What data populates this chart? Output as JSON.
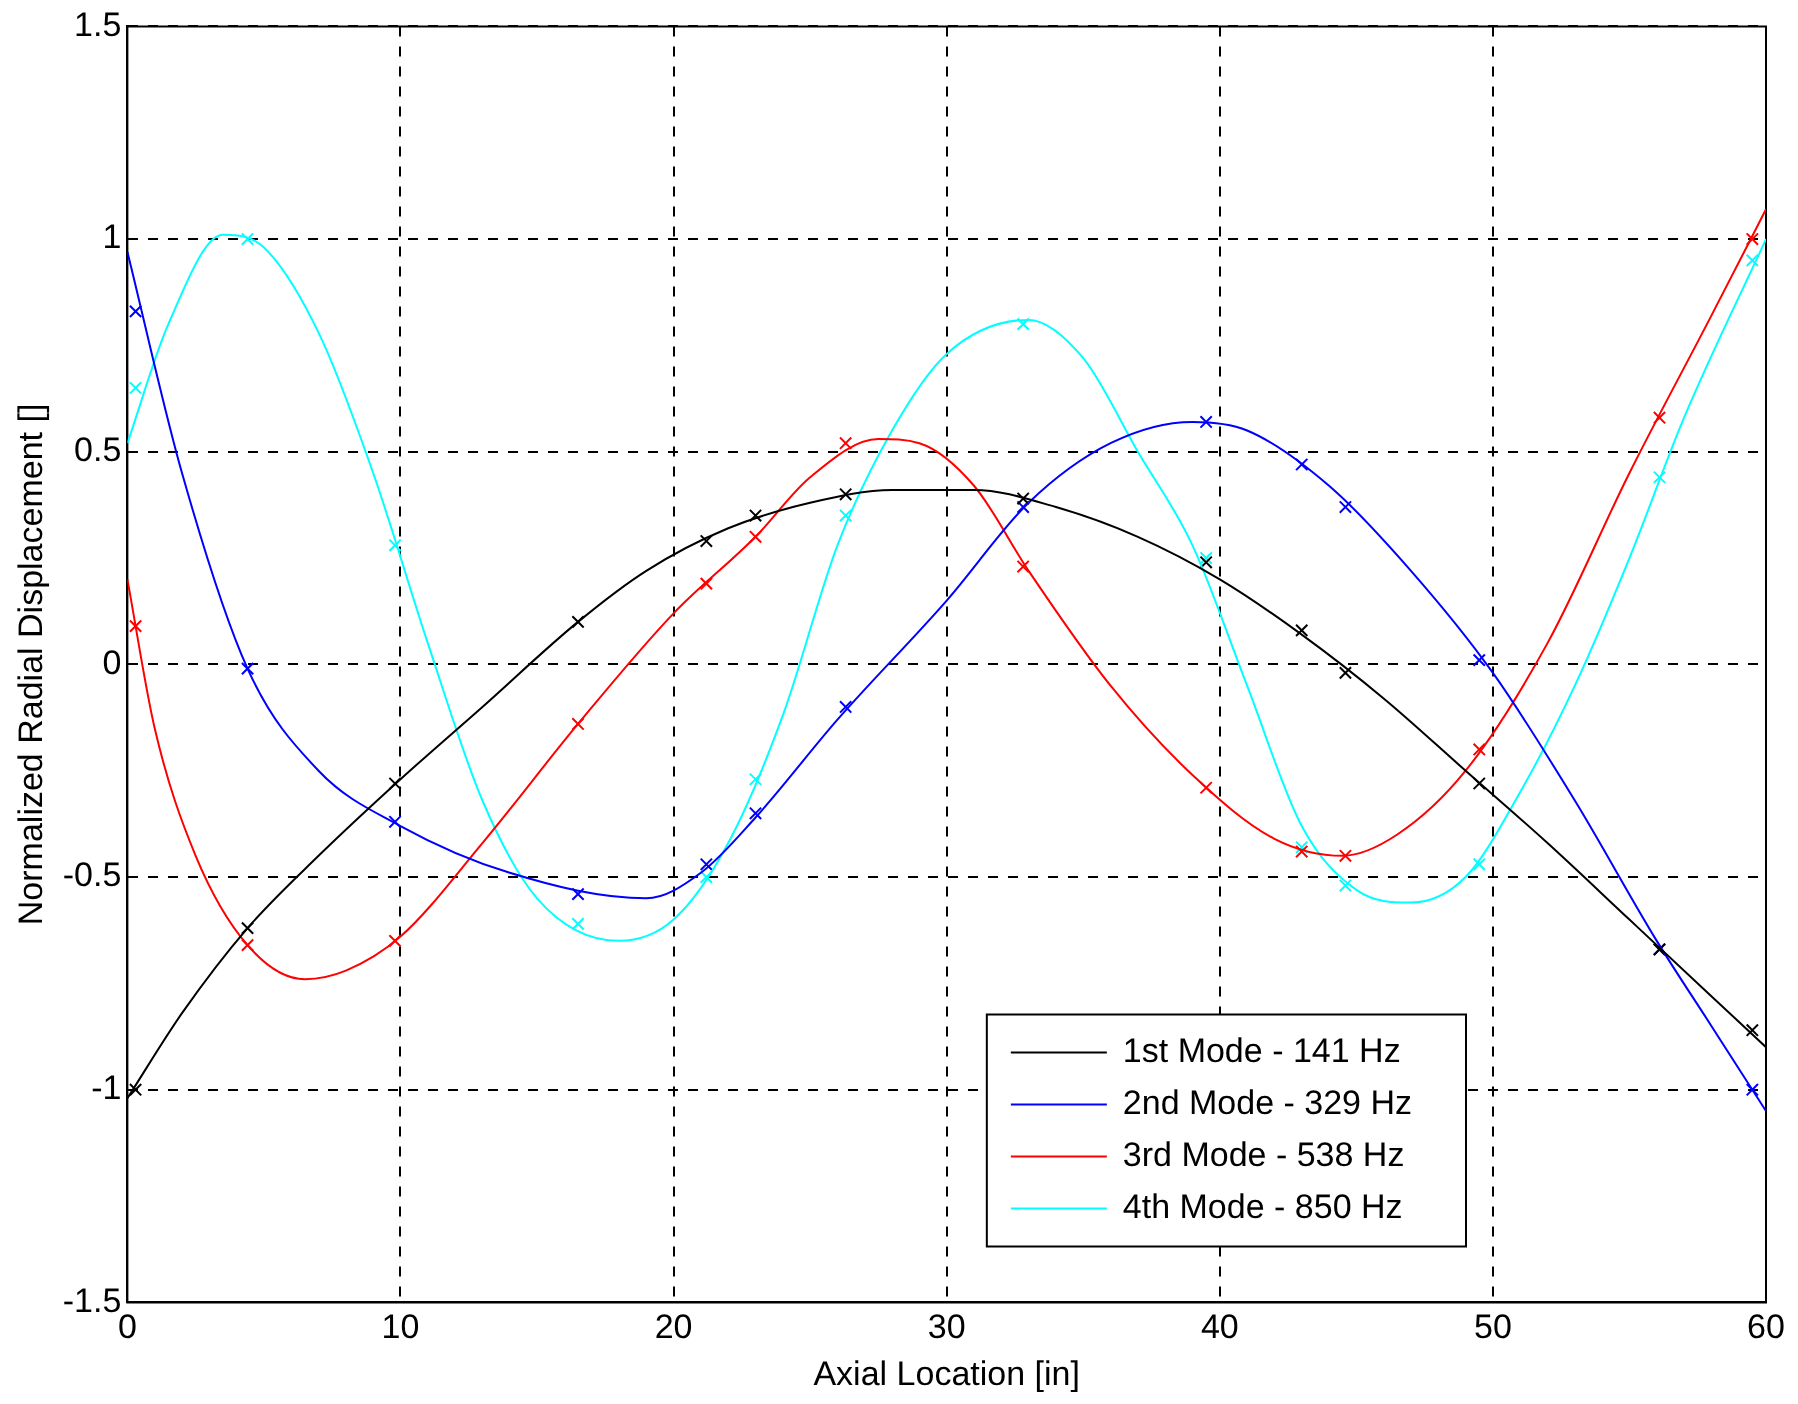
{
  "chart_data": {
    "type": "line",
    "xlabel": "Axial Location [in]",
    "ylabel": "Normalized Radial Displacement []",
    "xlim": [
      0,
      60
    ],
    "xticks": [
      0,
      10,
      20,
      30,
      40,
      50,
      60
    ],
    "ylim": [
      -1.5,
      1.5
    ],
    "yticks": [
      -1.5,
      -1,
      -0.5,
      0,
      0.5,
      1,
      1.5
    ],
    "grid": true,
    "legend": "bottom right",
    "line_style": "solid",
    "series": [
      {
        "name": "1st Mode - 141 Hz",
        "color": "#000000",
        "marker": "none",
        "x": [
          0,
          2,
          4.4,
          7,
          10,
          13,
          16.5,
          19,
          22,
          25,
          28,
          31,
          34,
          37,
          40,
          43,
          46,
          49,
          52,
          55,
          58,
          60
        ],
        "values": [
          -1.02,
          -0.82,
          -0.62,
          -0.45,
          -0.27,
          -0.1,
          0.1,
          0.22,
          0.32,
          0.38,
          0.41,
          0.41,
          0.37,
          0.3,
          0.2,
          0.07,
          -0.08,
          -0.25,
          -0.42,
          -0.6,
          -0.78,
          -0.9
        ]
      },
      {
        "name": "2nd Mode - 329 Hz",
        "color": "#0000ff",
        "marker": "none",
        "x": [
          0,
          2,
          4.4,
          7,
          10,
          14,
          19,
          21,
          23,
          26,
          30,
          33,
          36,
          39,
          41,
          44,
          47,
          50,
          53,
          56,
          58,
          60
        ],
        "values": [
          0.97,
          0.45,
          -0.01,
          -0.25,
          -0.38,
          -0.49,
          -0.55,
          -0.49,
          -0.36,
          -0.13,
          0.15,
          0.38,
          0.52,
          0.57,
          0.55,
          0.42,
          0.22,
          -0.02,
          -0.32,
          -0.65,
          -0.85,
          -1.05
        ]
      },
      {
        "name": "3rd Mode - 538 Hz",
        "color": "#ff0000",
        "marker": "none",
        "x": [
          0,
          1,
          2.5,
          4.4,
          6.5,
          8,
          10,
          13,
          16.5,
          20,
          23,
          25,
          27.5,
          29,
          31,
          33,
          36,
          39,
          42,
          44.5,
          46.5,
          49,
          52,
          55,
          58,
          60
        ],
        "values": [
          0.2,
          -0.15,
          -0.45,
          -0.66,
          -0.74,
          -0.72,
          -0.64,
          -0.42,
          -0.14,
          0.12,
          0.3,
          0.44,
          0.53,
          0.52,
          0.42,
          0.22,
          -0.05,
          -0.26,
          -0.41,
          -0.45,
          -0.4,
          -0.25,
          0.05,
          0.45,
          0.82,
          1.07
        ]
      },
      {
        "name": "4th Mode - 850 Hz",
        "color": "#00ffff",
        "marker": "none",
        "x": [
          0,
          1.5,
          3.5,
          5,
          7,
          9,
          11,
          13,
          15,
          18,
          20,
          22,
          24,
          26,
          28,
          30,
          33,
          35,
          37,
          39,
          41,
          43,
          45,
          47,
          49,
          51,
          53,
          55,
          57,
          60
        ],
        "values": [
          0.52,
          0.8,
          1.01,
          0.98,
          0.78,
          0.45,
          0.05,
          -0.32,
          -0.55,
          -0.65,
          -0.6,
          -0.42,
          -0.12,
          0.28,
          0.55,
          0.73,
          0.81,
          0.72,
          0.5,
          0.28,
          -0.05,
          -0.38,
          -0.53,
          -0.56,
          -0.5,
          -0.3,
          -0.05,
          0.25,
          0.58,
          1.0
        ]
      },
      {
        "color": "#000000",
        "type": "scatter",
        "marker": "cross",
        "x": [
          0.3,
          4.4,
          9.8,
          16.5,
          21.2,
          23,
          26.3,
          32.8,
          39.5,
          43,
          44.6,
          49.5,
          56.1,
          59.5
        ],
        "values": [
          -1.0,
          -0.62,
          -0.28,
          0.1,
          0.29,
          0.35,
          0.4,
          0.39,
          0.24,
          0.08,
          -0.02,
          -0.28,
          -0.67,
          -0.86
        ]
      },
      {
        "color": "#0000ff",
        "type": "scatter",
        "marker": "cross",
        "x": [
          0.3,
          4.4,
          9.8,
          16.5,
          21.2,
          23,
          26.3,
          32.8,
          39.5,
          43,
          44.6,
          49.5,
          56.1,
          59.5
        ],
        "values": [
          0.83,
          -0.01,
          -0.37,
          -0.54,
          -0.47,
          -0.35,
          -0.1,
          0.37,
          0.57,
          0.47,
          0.37,
          0.01,
          -0.67,
          -1.0
        ]
      },
      {
        "color": "#ff0000",
        "type": "scatter",
        "marker": "cross",
        "x": [
          0.3,
          4.4,
          9.8,
          16.5,
          21.2,
          23,
          26.3,
          32.8,
          39.5,
          43,
          44.6,
          49.5,
          56.1,
          59.5
        ],
        "values": [
          0.09,
          -0.66,
          -0.65,
          -0.14,
          0.19,
          0.3,
          0.52,
          0.23,
          -0.29,
          -0.44,
          -0.45,
          -0.2,
          0.58,
          1.0
        ]
      },
      {
        "color": "#00ffff",
        "type": "scatter",
        "marker": "cross",
        "x": [
          0.3,
          4.4,
          9.8,
          16.5,
          21.2,
          23,
          26.3,
          32.8,
          39.5,
          43,
          44.6,
          49.5,
          56.1,
          59.5
        ],
        "values": [
          0.65,
          1.0,
          0.28,
          -0.61,
          -0.5,
          -0.27,
          0.35,
          0.8,
          0.25,
          -0.43,
          -0.52,
          -0.47,
          0.44,
          0.95
        ]
      }
    ]
  }
}
